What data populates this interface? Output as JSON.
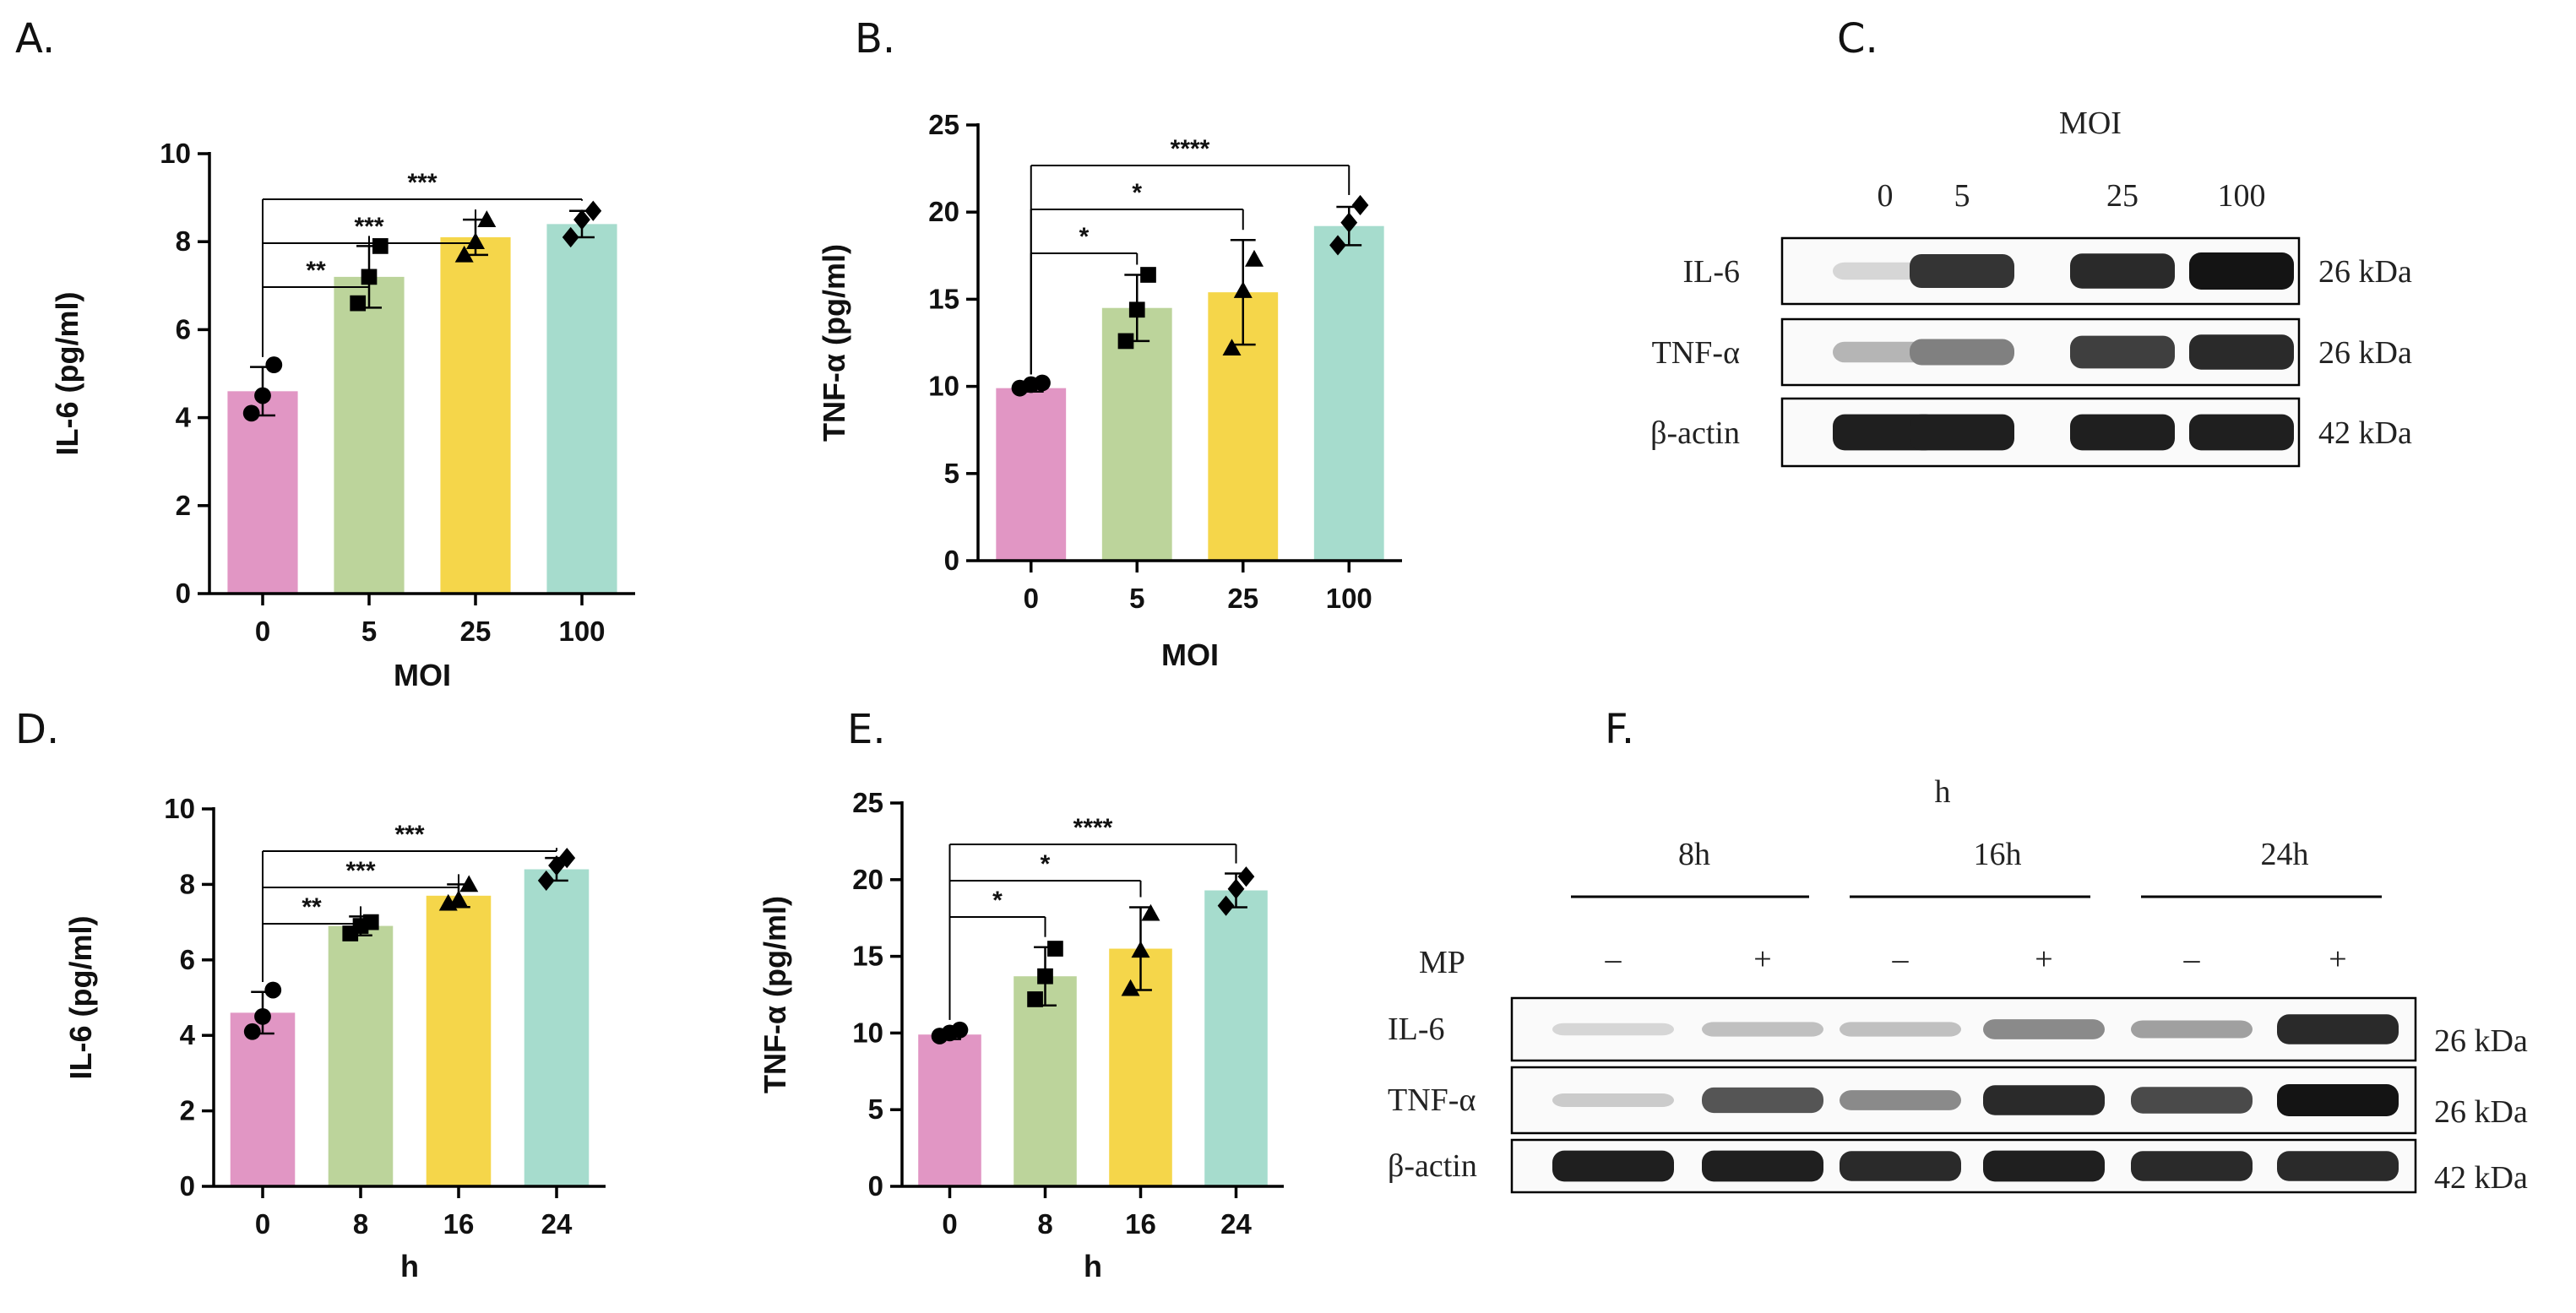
{
  "figure_title": "",
  "chart_data": [
    {
      "panel": "A.",
      "type": "bar",
      "categories": [
        "0",
        "5",
        "25",
        "100"
      ],
      "values": [
        4.6,
        7.2,
        8.1,
        8.4
      ],
      "errors": [
        0.55,
        0.7,
        0.4,
        0.3
      ],
      "points": [
        [
          4.1,
          4.5,
          5.2
        ],
        [
          6.6,
          7.2,
          7.9
        ],
        [
          7.7,
          8.0,
          8.5
        ],
        [
          8.1,
          8.5,
          8.7
        ]
      ],
      "markers": [
        "circle",
        "square",
        "triangle",
        "diamond"
      ],
      "colors": [
        "#e196c4",
        "#bcd49b",
        "#f5d64a",
        "#a6dccd"
      ],
      "ylim": [
        0,
        10
      ],
      "yticks": [
        0,
        2,
        4,
        6,
        8,
        10
      ],
      "ylabel": "IL-6 (pg/ml)",
      "xlabel": "MOI",
      "significance": [
        {
          "label": "**",
          "to": 1
        },
        {
          "label": "***",
          "to": 2
        },
        {
          "label": "***",
          "to": 3
        }
      ]
    },
    {
      "panel": "B.",
      "type": "bar",
      "categories": [
        "0",
        "5",
        "25",
        "100"
      ],
      "values": [
        9.9,
        14.5,
        15.4,
        19.2
      ],
      "errors": [
        0.2,
        1.9,
        3.0,
        1.1
      ],
      "points": [
        [
          9.9,
          10.1,
          10.2
        ],
        [
          12.6,
          14.4,
          16.4
        ],
        [
          12.2,
          15.5,
          17.3
        ],
        [
          18.1,
          19.4,
          20.4
        ]
      ],
      "markers": [
        "circle",
        "square",
        "triangle",
        "diamond"
      ],
      "colors": [
        "#e196c4",
        "#bcd49b",
        "#f5d64a",
        "#a6dccd"
      ],
      "ylim": [
        0,
        25
      ],
      "yticks": [
        0,
        5,
        10,
        15,
        20,
        25
      ],
      "ylabel": "TNF-α (pg/ml)",
      "xlabel": "MOI",
      "significance": [
        {
          "label": "*",
          "to": 1
        },
        {
          "label": "*",
          "to": 2
        },
        {
          "label": "****",
          "to": 3
        }
      ]
    },
    {
      "panel": "D.",
      "type": "bar",
      "categories": [
        "0",
        "8",
        "16",
        "24"
      ],
      "values": [
        4.6,
        6.9,
        7.7,
        8.4
      ],
      "errors": [
        0.55,
        0.25,
        0.3,
        0.3
      ],
      "points": [
        [
          4.1,
          4.5,
          5.2
        ],
        [
          6.7,
          6.9,
          7.0
        ],
        [
          7.5,
          7.6,
          8.0
        ],
        [
          8.1,
          8.5,
          8.7
        ]
      ],
      "markers": [
        "circle",
        "square",
        "triangle",
        "diamond"
      ],
      "colors": [
        "#e196c4",
        "#bcd49b",
        "#f5d64a",
        "#a6dccd"
      ],
      "ylim": [
        0,
        10
      ],
      "yticks": [
        0,
        2,
        4,
        6,
        8,
        10
      ],
      "ylabel": "IL-6 (pg/ml)",
      "xlabel": "h",
      "significance": [
        {
          "label": "**",
          "to": 1
        },
        {
          "label": "***",
          "to": 2
        },
        {
          "label": "***",
          "to": 3
        }
      ]
    },
    {
      "panel": "E.",
      "type": "bar",
      "categories": [
        "0",
        "8",
        "16",
        "24"
      ],
      "values": [
        9.9,
        13.7,
        15.5,
        19.3
      ],
      "errors": [
        0.3,
        1.9,
        2.7,
        1.1
      ],
      "points": [
        [
          9.8,
          10.0,
          10.2
        ],
        [
          12.2,
          13.7,
          15.5
        ],
        [
          12.9,
          15.4,
          17.8
        ],
        [
          18.3,
          19.4,
          20.2
        ]
      ],
      "markers": [
        "circle",
        "square",
        "triangle",
        "diamond"
      ],
      "colors": [
        "#e196c4",
        "#bcd49b",
        "#f5d64a",
        "#a6dccd"
      ],
      "ylim": [
        0,
        25
      ],
      "yticks": [
        0,
        5,
        10,
        15,
        20,
        25
      ],
      "ylabel": "TNF-α (pg/ml)",
      "xlabel": "h",
      "significance": [
        {
          "label": "*",
          "to": 1
        },
        {
          "label": "*",
          "to": 2
        },
        {
          "label": "****",
          "to": 3
        }
      ]
    }
  ],
  "blot_c": {
    "panel": "C.",
    "header": "MOI",
    "lanes": [
      "0",
      "5",
      "25",
      "100"
    ],
    "rows": [
      {
        "label": "IL-6",
        "kda": "26 kDa",
        "intensity": [
          0.1,
          0.85,
          0.9,
          1.0
        ]
      },
      {
        "label": "TNF-α",
        "kda": "26 kDa",
        "intensity": [
          0.25,
          0.5,
          0.8,
          0.9
        ]
      },
      {
        "label": "β-actin",
        "kda": "42 kDa",
        "intensity": [
          0.95,
          0.95,
          0.95,
          0.95
        ]
      }
    ]
  },
  "blot_f": {
    "panel": "F.",
    "header": "h",
    "groups": [
      "8h",
      "16h",
      "24h"
    ],
    "mp_label": "MP",
    "mp_signs": [
      "–",
      "+",
      "–",
      "+",
      "–",
      "+"
    ],
    "rows": [
      {
        "label": "IL-6",
        "kda": "26 kDa",
        "intensity": [
          0.1,
          0.2,
          0.2,
          0.45,
          0.35,
          0.9
        ]
      },
      {
        "label": "TNF-α",
        "kda": "26 kDa",
        "intensity": [
          0.15,
          0.7,
          0.45,
          0.9,
          0.75,
          1.0
        ]
      },
      {
        "label": "β-actin",
        "kda": "42 kDa",
        "intensity": [
          0.95,
          0.95,
          0.9,
          0.95,
          0.9,
          0.9
        ]
      }
    ]
  }
}
